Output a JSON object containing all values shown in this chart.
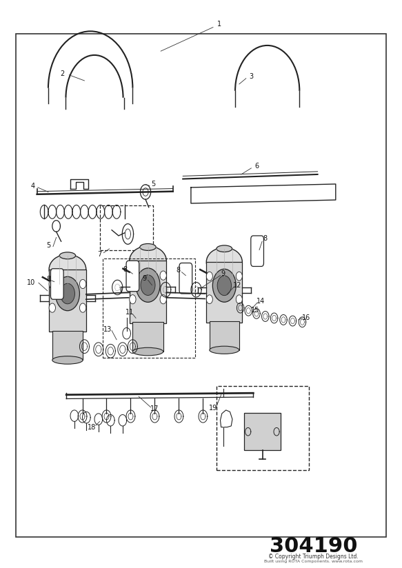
{
  "title": "",
  "part_number": "304190",
  "copyright_line1": "© Copyright Triumph Designs Ltd.",
  "copyright_line2": "Built using ROTA Components. www.rota.com",
  "bg_color": "#ffffff",
  "border_color": "#333333",
  "line_color": "#222222",
  "label_color": "#111111"
}
